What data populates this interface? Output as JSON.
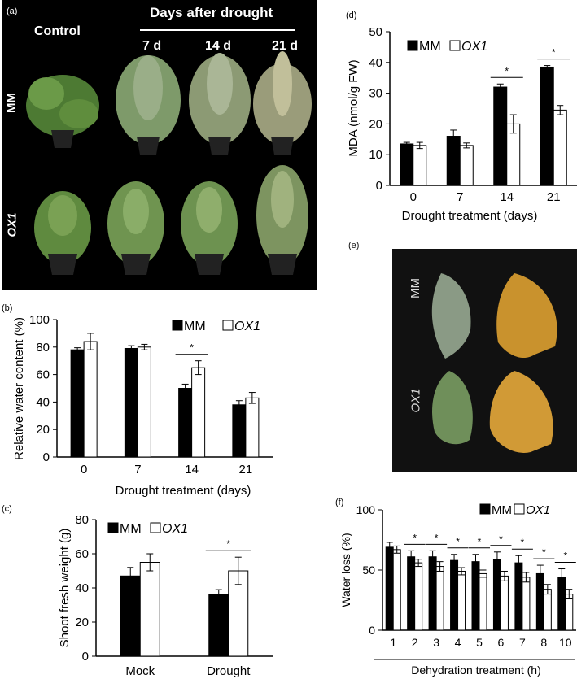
{
  "panel_a": {
    "label": "(a)",
    "header": "Days after drought",
    "control": "Control",
    "days": [
      "7 d",
      "14 d",
      "21 d"
    ],
    "rows": [
      "MM",
      "OX1"
    ]
  },
  "panel_e": {
    "label": "(e)",
    "rows": [
      "MM",
      "OX1"
    ]
  },
  "chart_data": [
    {
      "id": "b",
      "panel_label": "(b)",
      "type": "bar",
      "categories": [
        "0",
        "7",
        "14",
        "21"
      ],
      "ylabel": "Relative water content (%)",
      "xlabel": "Drought treatment  (days)",
      "ylim": [
        0,
        100
      ],
      "yticks": [
        0,
        20,
        40,
        60,
        80,
        100
      ],
      "series": [
        {
          "name": "MM",
          "color": "#000000",
          "values": [
            78,
            79,
            50,
            38
          ],
          "errors": [
            1.5,
            2,
            3,
            3
          ]
        },
        {
          "name": "OX1",
          "color": "#ffffff",
          "values": [
            84,
            80,
            65,
            43
          ],
          "errors": [
            6,
            2,
            5,
            4
          ]
        }
      ],
      "significance": [
        {
          "category": "14",
          "label": "*"
        }
      ],
      "legend_position": "top-right"
    },
    {
      "id": "c",
      "panel_label": "(c)",
      "type": "bar",
      "categories": [
        "Mock",
        "Drought"
      ],
      "ylabel": "Shoot fresh weight (g)",
      "xlabel": "",
      "ylim": [
        0,
        80
      ],
      "yticks": [
        0,
        20,
        40,
        60,
        80
      ],
      "series": [
        {
          "name": "MM",
          "color": "#000000",
          "values": [
            47,
            36
          ],
          "errors": [
            5,
            3
          ]
        },
        {
          "name": "OX1",
          "color": "#ffffff",
          "values": [
            55,
            50
          ],
          "errors": [
            5,
            8
          ]
        }
      ],
      "significance": [
        {
          "category": "Drought",
          "label": "*"
        }
      ],
      "legend_position": "top-left"
    },
    {
      "id": "d",
      "panel_label": "(d)",
      "type": "bar",
      "categories": [
        "0",
        "7",
        "14",
        "21"
      ],
      "ylabel": "MDA  (nmol/g FW)",
      "xlabel": "Drought treatment  (days)",
      "ylim": [
        0,
        50
      ],
      "yticks": [
        0,
        10,
        20,
        30,
        40,
        50
      ],
      "series": [
        {
          "name": "MM",
          "color": "#000000",
          "values": [
            13.5,
            16,
            32,
            38.5
          ],
          "errors": [
            0.5,
            2,
            1,
            0.5
          ]
        },
        {
          "name": "OX1",
          "color": "#ffffff",
          "values": [
            13,
            13,
            20,
            24.5
          ],
          "errors": [
            1,
            0.8,
            3,
            1.5
          ]
        }
      ],
      "significance": [
        {
          "category": "14",
          "label": "*"
        },
        {
          "category": "21",
          "label": "*"
        }
      ],
      "legend_position": "top-left"
    },
    {
      "id": "f",
      "panel_label": "(f)",
      "type": "bar",
      "categories": [
        "1",
        "2",
        "3",
        "4",
        "5",
        "6",
        "7",
        "8",
        "10"
      ],
      "ylabel": "Water loss (%)",
      "xlabel": "Dehydration treatment (h)",
      "ylim": [
        0,
        100
      ],
      "yticks": [
        0,
        50,
        100
      ],
      "series": [
        {
          "name": "MM",
          "color": "#000000",
          "values": [
            69,
            61,
            61,
            58,
            57,
            59,
            56,
            47,
            44
          ],
          "errors": [
            4,
            5,
            5,
            5,
            6,
            6,
            6,
            7,
            7
          ]
        },
        {
          "name": "OX1",
          "color": "#ffffff",
          "values": [
            67,
            56,
            53,
            49,
            47,
            45,
            44,
            34,
            30
          ],
          "errors": [
            3,
            3,
            4,
            3,
            3,
            4,
            4,
            4,
            4
          ]
        }
      ],
      "significance": [
        {
          "category": "2",
          "label": "*"
        },
        {
          "category": "3",
          "label": "*"
        },
        {
          "category": "4",
          "label": "*"
        },
        {
          "category": "5",
          "label": "*"
        },
        {
          "category": "6",
          "label": "*"
        },
        {
          "category": "7",
          "label": "*"
        },
        {
          "category": "8",
          "label": "*"
        },
        {
          "category": "10",
          "label": "*"
        }
      ],
      "legend_position": "top-right"
    }
  ]
}
